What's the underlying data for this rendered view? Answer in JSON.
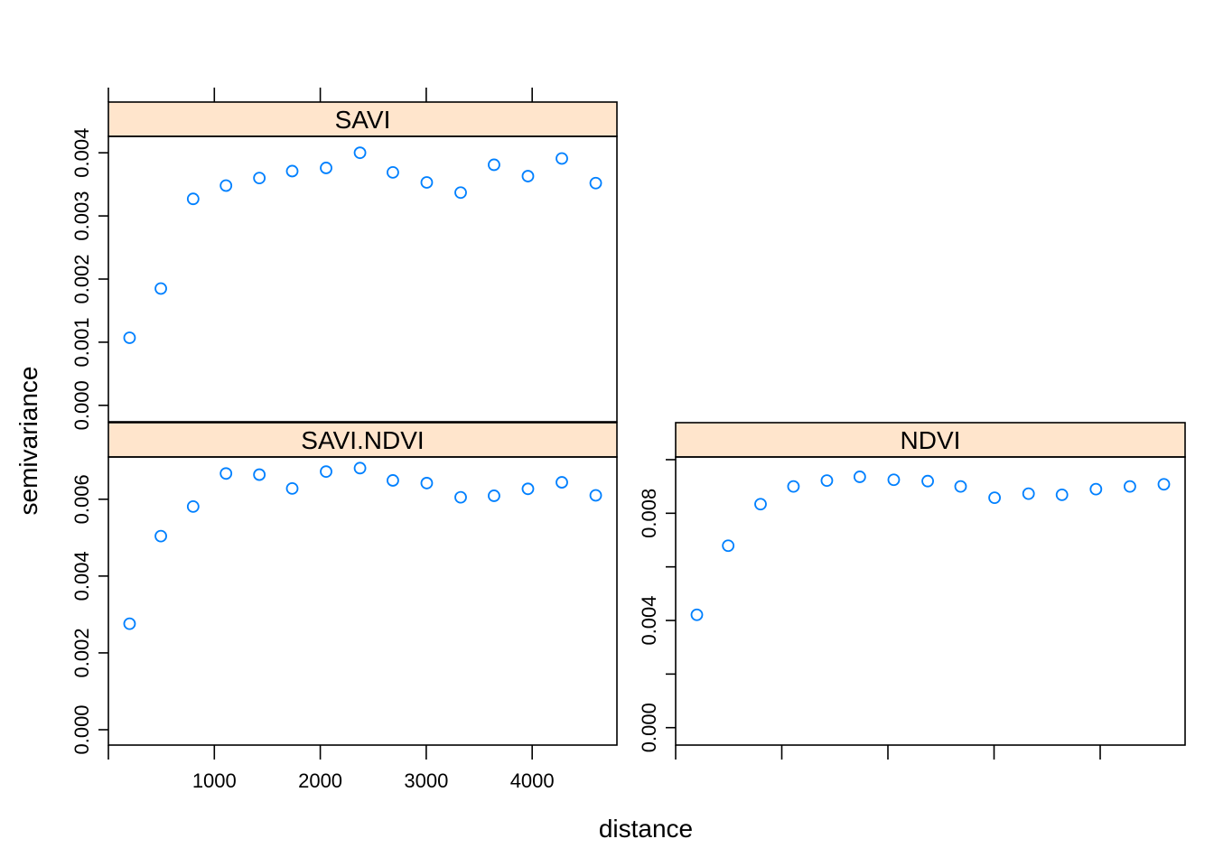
{
  "figure": {
    "xlabel": "distance",
    "ylabel": "semivariance",
    "point_color": "#0080ff",
    "strip_color": "#ffe5cc"
  },
  "chart_data": [
    {
      "type": "scatter",
      "panel": "SAVI",
      "xlabel": "distance",
      "ylabel": "semivariance",
      "xlim": [
        0,
        4800
      ],
      "ylim": [
        -0.00026,
        0.00426
      ],
      "x_ticks": [
        1000,
        2000,
        3000,
        4000
      ],
      "x_tick_labels": [
        "1000",
        "2000",
        "3000",
        "4000"
      ],
      "x_tick_labels_shown": false,
      "y_ticks": [
        0.0,
        0.001,
        0.002,
        0.003,
        0.004
      ],
      "y_tick_labels": [
        "0.000",
        "0.001",
        "0.002",
        "0.003",
        "0.004"
      ],
      "x": [
        200,
        495,
        800,
        1110,
        1425,
        1735,
        2055,
        2375,
        2685,
        3005,
        3325,
        3640,
        3960,
        4280,
        4600
      ],
      "y": [
        0.00107,
        0.00185,
        0.00327,
        0.00348,
        0.0036,
        0.00371,
        0.00376,
        0.004,
        0.00369,
        0.00353,
        0.00337,
        0.00381,
        0.00363,
        0.00391,
        0.00352
      ]
    },
    {
      "type": "scatter",
      "panel": "SAVI.NDVI",
      "xlabel": "distance",
      "ylabel": "semivariance",
      "xlim": [
        0,
        4800
      ],
      "ylim": [
        -0.0004,
        0.0071
      ],
      "x_ticks": [
        1000,
        2000,
        3000,
        4000
      ],
      "x_tick_labels": [
        "1000",
        "2000",
        "3000",
        "4000"
      ],
      "x_tick_labels_shown": true,
      "y_ticks": [
        0.0,
        0.002,
        0.004,
        0.006
      ],
      "y_tick_labels": [
        "0.000",
        "0.002",
        "0.004",
        "0.006"
      ],
      "x": [
        200,
        495,
        800,
        1110,
        1425,
        1735,
        2055,
        2375,
        2685,
        3005,
        3325,
        3640,
        3960,
        4280,
        4600
      ],
      "y": [
        0.00276,
        0.00504,
        0.00581,
        0.00667,
        0.00664,
        0.00628,
        0.00672,
        0.00681,
        0.00649,
        0.00642,
        0.00605,
        0.00609,
        0.00627,
        0.00644,
        0.0061
      ]
    },
    {
      "type": "scatter",
      "panel": "NDVI",
      "xlabel": "distance",
      "ylabel": "semivariance",
      "xlim": [
        0,
        4800
      ],
      "ylim": [
        -0.00065,
        0.0101
      ],
      "x_ticks": [
        1000,
        2000,
        3000,
        4000
      ],
      "x_tick_labels": [
        "1000",
        "2000",
        "3000",
        "4000"
      ],
      "x_tick_labels_shown": false,
      "y_ticks": [
        0.0,
        0.004,
        0.008
      ],
      "y_tick_labels": [
        "0.000",
        "0.004",
        "0.008"
      ],
      "y_minor_ticks": [
        0.002,
        0.006,
        0.01
      ],
      "x": [
        200,
        495,
        800,
        1110,
        1425,
        1735,
        2055,
        2375,
        2685,
        3005,
        3325,
        3640,
        3960,
        4280,
        4600
      ],
      "y": [
        0.00421,
        0.00679,
        0.00834,
        0.009,
        0.00922,
        0.00936,
        0.00925,
        0.0092,
        0.009,
        0.00858,
        0.00873,
        0.00869,
        0.0089,
        0.009,
        0.00908
      ]
    }
  ]
}
